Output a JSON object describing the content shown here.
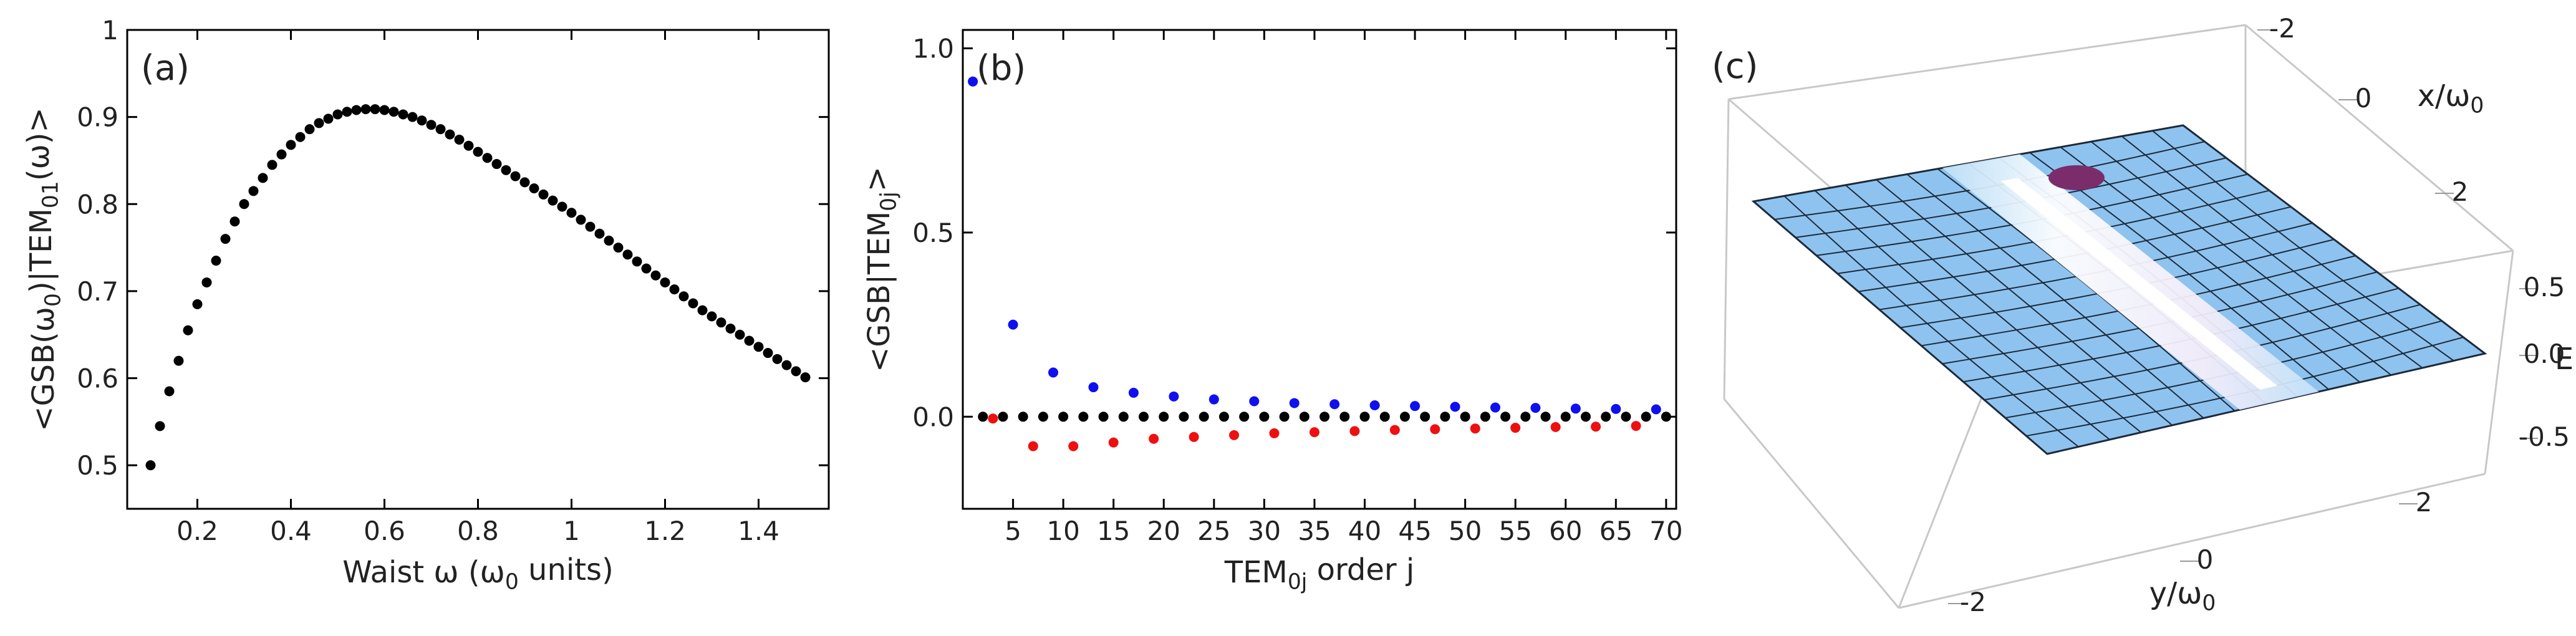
{
  "chart_data": [
    {
      "type": "scatter",
      "panel": "(a)",
      "xlabel": [
        "Waist ω (ω",
        "0",
        " units)"
      ],
      "ylabel": [
        "<GSB(ω",
        "0",
        ")|TEM",
        "01",
        "(ω)>"
      ],
      "color": "#000000",
      "x": [
        0.1,
        0.12,
        0.14,
        0.16,
        0.18,
        0.2,
        0.22,
        0.24,
        0.26,
        0.28,
        0.3,
        0.32,
        0.34,
        0.36,
        0.38,
        0.4,
        0.42,
        0.44,
        0.46,
        0.48,
        0.5,
        0.52,
        0.54,
        0.56,
        0.58,
        0.6,
        0.62,
        0.64,
        0.66,
        0.68,
        0.7,
        0.72,
        0.74,
        0.76,
        0.78,
        0.8,
        0.82,
        0.84,
        0.86,
        0.88,
        0.9,
        0.92,
        0.94,
        0.96,
        0.98,
        1.0,
        1.02,
        1.04,
        1.06,
        1.08,
        1.1,
        1.12,
        1.14,
        1.16,
        1.18,
        1.2,
        1.22,
        1.24,
        1.26,
        1.28,
        1.3,
        1.32,
        1.34,
        1.36,
        1.38,
        1.4,
        1.42,
        1.44,
        1.46,
        1.48,
        1.5
      ],
      "values": [
        0.5,
        0.545,
        0.585,
        0.62,
        0.655,
        0.685,
        0.71,
        0.735,
        0.76,
        0.78,
        0.8,
        0.815,
        0.83,
        0.845,
        0.857,
        0.868,
        0.877,
        0.886,
        0.893,
        0.898,
        0.903,
        0.906,
        0.908,
        0.909,
        0.909,
        0.908,
        0.906,
        0.903,
        0.9,
        0.896,
        0.891,
        0.886,
        0.88,
        0.874,
        0.867,
        0.86,
        0.853,
        0.846,
        0.839,
        0.832,
        0.825,
        0.818,
        0.811,
        0.804,
        0.797,
        0.79,
        0.782,
        0.774,
        0.766,
        0.758,
        0.75,
        0.742,
        0.734,
        0.726,
        0.718,
        0.71,
        0.702,
        0.694,
        0.686,
        0.678,
        0.671,
        0.664,
        0.657,
        0.65,
        0.643,
        0.636,
        0.629,
        0.622,
        0.615,
        0.608,
        0.601
      ],
      "xlim": [
        0.05,
        1.55
      ],
      "xticks": [
        0.2,
        0.4,
        0.6,
        0.8,
        1,
        1.2,
        1.4
      ],
      "ylim": [
        0.45,
        1
      ],
      "yticks": [
        0.5,
        0.6,
        0.7,
        0.8,
        0.9,
        1
      ]
    },
    {
      "type": "scatter",
      "panel": "(b)",
      "xlabel": [
        "TEM",
        "0j",
        " order j"
      ],
      "ylabel": [
        "<GSB|TEM",
        "0j",
        ">"
      ],
      "series": [
        {
          "color": "#1010ee",
          "x": [
            1,
            5,
            9,
            13,
            17,
            21,
            25,
            29,
            33,
            37,
            41,
            45,
            49,
            53,
            57,
            61,
            65,
            69
          ],
          "values": [
            0.91,
            0.25,
            0.12,
            0.08,
            0.065,
            0.055,
            0.047,
            0.042,
            0.037,
            0.034,
            0.031,
            0.029,
            0.027,
            0.025,
            0.024,
            0.022,
            0.021,
            0.02
          ]
        },
        {
          "color": "#ee1010",
          "x": [
            3,
            7,
            11,
            15,
            19,
            23,
            27,
            31,
            35,
            39,
            43,
            47,
            51,
            55,
            59,
            63,
            67
          ],
          "values": [
            -0.005,
            -0.08,
            -0.08,
            -0.07,
            -0.06,
            -0.055,
            -0.05,
            -0.045,
            -0.042,
            -0.039,
            -0.036,
            -0.034,
            -0.032,
            -0.03,
            -0.028,
            -0.027,
            -0.025
          ]
        },
        {
          "color": "#000000",
          "x": [
            2,
            4,
            6,
            8,
            10,
            12,
            14,
            16,
            18,
            20,
            22,
            24,
            26,
            28,
            30,
            32,
            34,
            36,
            38,
            40,
            42,
            44,
            46,
            48,
            50,
            52,
            54,
            56,
            58,
            60,
            62,
            64,
            66,
            68,
            70
          ],
          "values": [
            0,
            0,
            0,
            0,
            0,
            0,
            0,
            0,
            0,
            0,
            0,
            0,
            0,
            0,
            0,
            0,
            0,
            0,
            0,
            0,
            0,
            0,
            0,
            0,
            0,
            0,
            0,
            0,
            0,
            0,
            0,
            0,
            0,
            0,
            0
          ]
        }
      ],
      "xlim": [
        0,
        71
      ],
      "xticks": [
        5,
        10,
        15,
        20,
        25,
        30,
        35,
        40,
        45,
        50,
        55,
        60,
        65,
        70
      ],
      "ylim": [
        -0.25,
        1.05
      ],
      "yticks": [
        {
          "value": 0,
          "label": "0.0"
        },
        0.5,
        {
          "value": 1,
          "label": "1.0"
        }
      ]
    },
    {
      "type": "surface",
      "panel": "(c)",
      "xlabel": [
        "x/ω",
        "0"
      ],
      "ylabel": [
        "y/ω",
        "0"
      ],
      "zlabel": [
        "E"
      ],
      "xticks": [
        -2,
        0,
        2
      ],
      "yticks": [
        -2,
        0,
        2
      ],
      "zticks": [
        0.5,
        {
          "value": 0,
          "label": "0.0"
        },
        -0.5
      ]
    }
  ]
}
